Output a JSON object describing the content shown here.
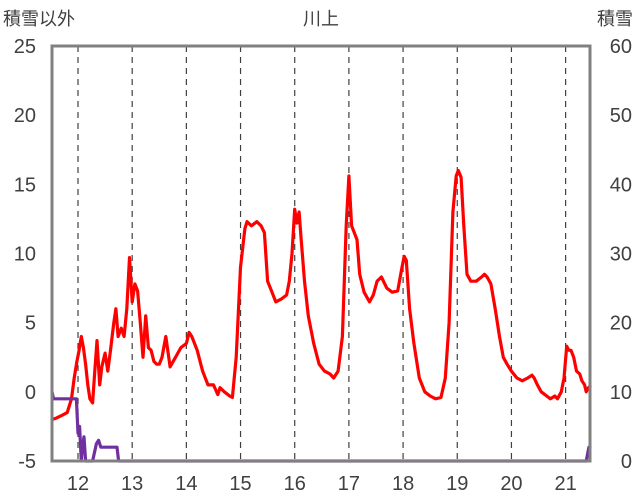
{
  "chart_data": {
    "type": "line",
    "title": "川上",
    "y_left_label": "積雪以外",
    "y_right_label": "積雪",
    "x_ticks": [
      "12",
      "13",
      "14",
      "15",
      "16",
      "17",
      "18",
      "19",
      "20",
      "21"
    ],
    "x_range": [
      11.52,
      21.45
    ],
    "y_left_range": [
      -5,
      25
    ],
    "y_left_ticks": [
      "-5",
      "0",
      "5",
      "10",
      "15",
      "20",
      "25"
    ],
    "y_right_range": [
      0,
      60
    ],
    "y_right_ticks": [
      "0",
      "10",
      "20",
      "30",
      "40",
      "50",
      "60"
    ],
    "grid": {
      "vertical_dashed": true,
      "horizontal": false
    },
    "colors": {
      "temperature": "#ff0000",
      "snow": "#7030a0",
      "axis": "#808080",
      "grid": "#404040"
    },
    "series": [
      {
        "axis": "left",
        "color": "#ff0000",
        "points": [
          [
            11.52,
            -2.0
          ],
          [
            11.6,
            -1.9
          ],
          [
            11.7,
            -1.7
          ],
          [
            11.8,
            -1.5
          ],
          [
            11.88,
            -0.5
          ],
          [
            11.93,
            1.0
          ],
          [
            11.98,
            2.2
          ],
          [
            12.02,
            3.0
          ],
          [
            12.06,
            4.0
          ],
          [
            12.1,
            3.2
          ],
          [
            12.14,
            2.0
          ],
          [
            12.18,
            0.5
          ],
          [
            12.22,
            -0.5
          ],
          [
            12.27,
            -0.8
          ],
          [
            12.31,
            1.5
          ],
          [
            12.35,
            3.7
          ],
          [
            12.4,
            0.5
          ],
          [
            12.44,
            1.8
          ],
          [
            12.5,
            2.8
          ],
          [
            12.55,
            1.5
          ],
          [
            12.6,
            3.0
          ],
          [
            12.66,
            5.0
          ],
          [
            12.7,
            6.0
          ],
          [
            12.74,
            4.0
          ],
          [
            12.8,
            4.6
          ],
          [
            12.85,
            4.0
          ],
          [
            12.9,
            6.0
          ],
          [
            12.95,
            9.7
          ],
          [
            13.0,
            6.5
          ],
          [
            13.05,
            7.8
          ],
          [
            13.1,
            7.3
          ],
          [
            13.15,
            5.0
          ],
          [
            13.2,
            2.5
          ],
          [
            13.25,
            5.5
          ],
          [
            13.3,
            3.2
          ],
          [
            13.35,
            3.0
          ],
          [
            13.4,
            2.2
          ],
          [
            13.45,
            2.0
          ],
          [
            13.5,
            2.0
          ],
          [
            13.55,
            2.5
          ],
          [
            13.62,
            4.0
          ],
          [
            13.7,
            1.8
          ],
          [
            13.8,
            2.5
          ],
          [
            13.9,
            3.2
          ],
          [
            14.0,
            3.5
          ],
          [
            14.05,
            4.3
          ],
          [
            14.1,
            4.0
          ],
          [
            14.2,
            3.0
          ],
          [
            14.3,
            1.5
          ],
          [
            14.4,
            0.5
          ],
          [
            14.5,
            0.5
          ],
          [
            14.58,
            -0.2
          ],
          [
            14.62,
            0.3
          ],
          [
            14.7,
            0.0
          ],
          [
            14.8,
            -0.3
          ],
          [
            14.85,
            -0.4
          ],
          [
            14.92,
            2.5
          ],
          [
            15.0,
            9.0
          ],
          [
            15.08,
            11.8
          ],
          [
            15.12,
            12.3
          ],
          [
            15.2,
            12.0
          ],
          [
            15.3,
            12.3
          ],
          [
            15.38,
            12.0
          ],
          [
            15.44,
            11.5
          ],
          [
            15.5,
            8.0
          ],
          [
            15.58,
            7.2
          ],
          [
            15.65,
            6.5
          ],
          [
            15.75,
            6.7
          ],
          [
            15.85,
            7.0
          ],
          [
            15.9,
            8.0
          ],
          [
            15.95,
            10.0
          ],
          [
            16.0,
            13.2
          ],
          [
            16.04,
            12.2
          ],
          [
            16.08,
            13.0
          ],
          [
            16.12,
            11.0
          ],
          [
            16.18,
            8.0
          ],
          [
            16.25,
            5.5
          ],
          [
            16.35,
            3.5
          ],
          [
            16.45,
            2.0
          ],
          [
            16.55,
            1.5
          ],
          [
            16.65,
            1.3
          ],
          [
            16.72,
            1.0
          ],
          [
            16.8,
            1.5
          ],
          [
            16.88,
            4.0
          ],
          [
            16.95,
            12.0
          ],
          [
            17.0,
            15.6
          ],
          [
            17.05,
            12.0
          ],
          [
            17.1,
            11.5
          ],
          [
            17.15,
            11.0
          ],
          [
            17.2,
            8.5
          ],
          [
            17.28,
            7.2
          ],
          [
            17.38,
            6.5
          ],
          [
            17.45,
            7.0
          ],
          [
            17.52,
            8.0
          ],
          [
            17.6,
            8.3
          ],
          [
            17.7,
            7.5
          ],
          [
            17.8,
            7.2
          ],
          [
            17.9,
            7.3
          ],
          [
            17.98,
            9.0
          ],
          [
            18.02,
            9.8
          ],
          [
            18.06,
            9.5
          ],
          [
            18.12,
            6.0
          ],
          [
            18.2,
            3.5
          ],
          [
            18.3,
            1.0
          ],
          [
            18.4,
            0.0
          ],
          [
            18.5,
            -0.3
          ],
          [
            18.6,
            -0.5
          ],
          [
            18.7,
            -0.4
          ],
          [
            18.78,
            1.0
          ],
          [
            18.85,
            5.0
          ],
          [
            18.92,
            13.0
          ],
          [
            18.98,
            15.6
          ],
          [
            19.02,
            16.0
          ],
          [
            19.07,
            15.5
          ],
          [
            19.12,
            12.0
          ],
          [
            19.18,
            8.5
          ],
          [
            19.25,
            8.0
          ],
          [
            19.35,
            8.0
          ],
          [
            19.45,
            8.3
          ],
          [
            19.5,
            8.5
          ],
          [
            19.55,
            8.3
          ],
          [
            19.62,
            7.8
          ],
          [
            19.7,
            6.0
          ],
          [
            19.78,
            4.0
          ],
          [
            19.85,
            2.5
          ],
          [
            19.92,
            2.0
          ],
          [
            20.0,
            1.5
          ],
          [
            20.1,
            1.0
          ],
          [
            20.2,
            0.8
          ],
          [
            20.3,
            1.0
          ],
          [
            20.38,
            1.2
          ],
          [
            20.42,
            1.0
          ],
          [
            20.48,
            0.5
          ],
          [
            20.55,
            0.0
          ],
          [
            20.65,
            -0.3
          ],
          [
            20.72,
            -0.5
          ],
          [
            20.8,
            -0.3
          ],
          [
            20.85,
            -0.5
          ],
          [
            20.92,
            0.0
          ],
          [
            20.97,
            1.0
          ],
          [
            21.02,
            3.3
          ],
          [
            21.06,
            3.0
          ],
          [
            21.1,
            3.0
          ],
          [
            21.15,
            2.5
          ],
          [
            21.2,
            1.5
          ],
          [
            21.26,
            1.3
          ],
          [
            21.3,
            0.8
          ],
          [
            21.35,
            0.5
          ],
          [
            21.38,
            0.0
          ],
          [
            21.42,
            0.3
          ],
          [
            21.45,
            0.4
          ]
        ]
      },
      {
        "axis": "right",
        "color": "#7030a0",
        "points": [
          [
            11.52,
            10.0
          ],
          [
            11.55,
            9.0
          ],
          [
            11.8,
            9.0
          ],
          [
            11.92,
            9.0
          ],
          [
            11.97,
            9.0
          ],
          [
            12.0,
            4.0
          ],
          [
            12.03,
            5.0
          ],
          [
            12.06,
            0.0
          ],
          [
            12.08,
            2.0
          ],
          [
            12.11,
            3.5
          ],
          [
            12.14,
            0.0
          ],
          [
            12.22,
            0.0
          ],
          [
            12.27,
            0.0
          ],
          [
            12.34,
            2.5
          ],
          [
            12.38,
            3.0
          ],
          [
            12.42,
            2.0
          ],
          [
            12.5,
            2.0
          ],
          [
            12.55,
            2.0
          ],
          [
            12.62,
            2.0
          ],
          [
            12.72,
            2.0
          ],
          [
            12.75,
            0.0
          ],
          [
            13.0,
            0.0
          ],
          [
            21.38,
            0.0
          ],
          [
            21.43,
            2.0
          ],
          [
            21.45,
            2.0
          ]
        ]
      }
    ]
  }
}
